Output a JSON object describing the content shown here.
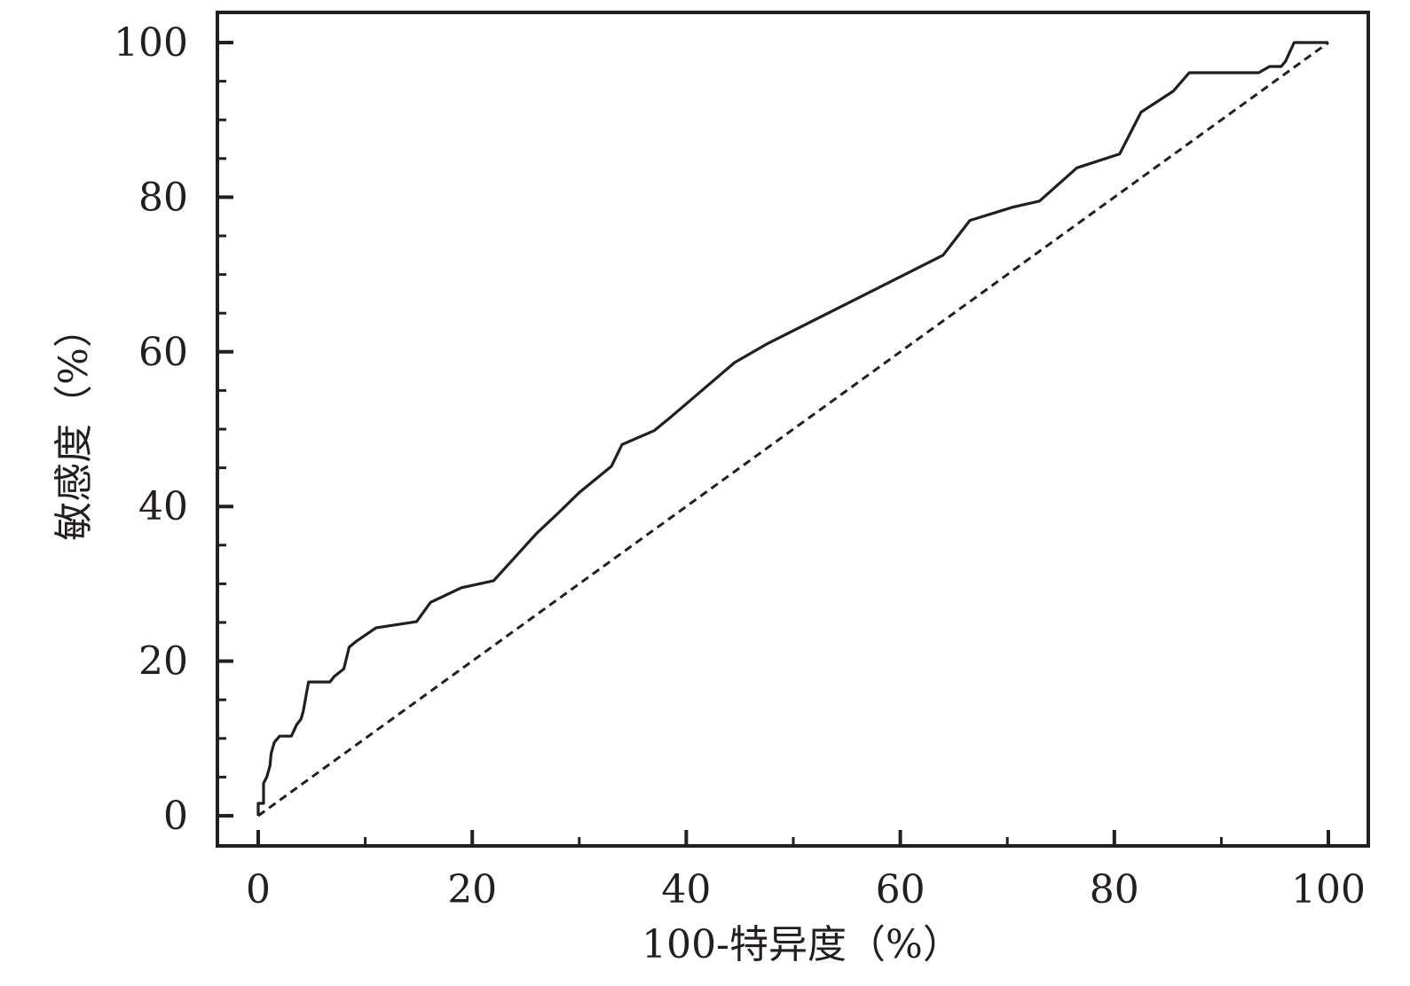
{
  "chart_data": {
    "type": "line",
    "title": "",
    "xlabel": "100-特异度（%）",
    "ylabel": "敏感度（%）",
    "xlim": [
      0,
      100
    ],
    "ylim": [
      0,
      100
    ],
    "x_ticks": [
      0,
      20,
      40,
      60,
      80,
      100
    ],
    "y_ticks": [
      0,
      20,
      40,
      60,
      80,
      100
    ],
    "grid": false,
    "legend": "none",
    "series": [
      {
        "style": "solid",
        "color": "#231f20",
        "points": [
          [
            0,
            0
          ],
          [
            0,
            1.6
          ],
          [
            0.5,
            1.6
          ],
          [
            0.5,
            4.2
          ],
          [
            0.8,
            5
          ],
          [
            1.1,
            6.5
          ],
          [
            1.2,
            8
          ],
          [
            1.5,
            9.5
          ],
          [
            2,
            10.3
          ],
          [
            3.1,
            10.3
          ],
          [
            3.6,
            11.8
          ],
          [
            4,
            12.5
          ],
          [
            4.2,
            13.5
          ],
          [
            4.7,
            17.3
          ],
          [
            6.7,
            17.3
          ],
          [
            7.1,
            18
          ],
          [
            8,
            19
          ],
          [
            8.5,
            21.8
          ],
          [
            9.2,
            22.6
          ],
          [
            11,
            24.3
          ],
          [
            14.8,
            25.1
          ],
          [
            16.1,
            27.6
          ],
          [
            19,
            29.5
          ],
          [
            22,
            30.4
          ],
          [
            26,
            36.5
          ],
          [
            28,
            39.1
          ],
          [
            30,
            41.8
          ],
          [
            33,
            45.2
          ],
          [
            34,
            48
          ],
          [
            37,
            49.8
          ],
          [
            38.5,
            51.5
          ],
          [
            44.5,
            58.6
          ],
          [
            47.5,
            61
          ],
          [
            64,
            72.5
          ],
          [
            66.5,
            77
          ],
          [
            70.5,
            78.7
          ],
          [
            73,
            79.5
          ],
          [
            76.5,
            83.8
          ],
          [
            80.5,
            85.6
          ],
          [
            82.5,
            91
          ],
          [
            85.5,
            93.7
          ],
          [
            87,
            96.1
          ],
          [
            93.5,
            96.1
          ],
          [
            94.5,
            96.9
          ],
          [
            95.6,
            96.9
          ],
          [
            96,
            97.6
          ],
          [
            96.8,
            100
          ],
          [
            100,
            100
          ]
        ]
      },
      {
        "style": "dashed",
        "color": "#231f20",
        "points": [
          [
            0,
            0
          ],
          [
            100,
            100
          ]
        ]
      }
    ]
  }
}
